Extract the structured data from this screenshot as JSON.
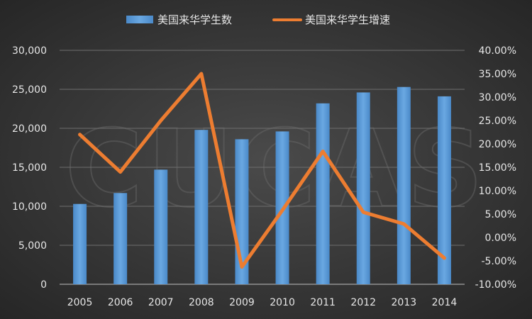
{
  "chart_data": {
    "type": "bar+line",
    "categories": [
      "2005",
      "2006",
      "2007",
      "2008",
      "2009",
      "2010",
      "2011",
      "2012",
      "2013",
      "2014"
    ],
    "series": [
      {
        "name": "美国来华学生数",
        "type": "bar",
        "axis": "left",
        "color": "#5b9bd5",
        "values": [
          10300,
          11700,
          14700,
          19800,
          18600,
          19600,
          23200,
          24600,
          25300,
          24100
        ]
      },
      {
        "name": "美国来华学生增速",
        "type": "line",
        "axis": "right",
        "color": "#ed7d31",
        "values": [
          22.0,
          14.0,
          25.0,
          35.0,
          -6.3,
          5.8,
          18.4,
          5.4,
          2.9,
          -4.4
        ]
      }
    ],
    "y_left": {
      "range": [
        0,
        30000
      ],
      "ticks": [
        "0",
        "5,000",
        "10,000",
        "15,000",
        "20,000",
        "25,000",
        "30,000"
      ]
    },
    "y_right": {
      "range": [
        -10,
        40
      ],
      "ticks": [
        "-10.00%",
        "-5.00%",
        "0.00%",
        "5.00%",
        "10.00%",
        "15.00%",
        "20.00%",
        "25.00%",
        "30.00%",
        "35.00%",
        "40.00%"
      ]
    },
    "grid": true,
    "legend_position": "top",
    "watermark": "CUCAS"
  }
}
